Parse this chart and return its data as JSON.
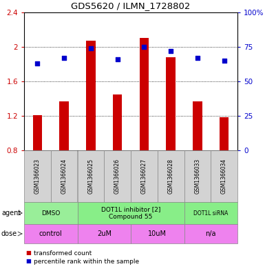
{
  "title": "GDS5620 / ILMN_1728802",
  "samples": [
    "GSM1366023",
    "GSM1366024",
    "GSM1366025",
    "GSM1366026",
    "GSM1366027",
    "GSM1366028",
    "GSM1366033",
    "GSM1366034"
  ],
  "transformed_counts": [
    1.21,
    1.37,
    2.07,
    1.45,
    2.1,
    1.88,
    1.37,
    1.18
  ],
  "percentile_ranks": [
    63,
    67,
    74,
    66,
    75,
    72,
    67,
    65
  ],
  "ylim_left": [
    0.8,
    2.4
  ],
  "ylim_right": [
    0,
    100
  ],
  "yticks_left": [
    0.8,
    1.2,
    1.6,
    2.0,
    2.4
  ],
  "yticks_right": [
    0,
    25,
    50,
    75,
    100
  ],
  "bar_color": "#cc0000",
  "bar_bottom": 0.8,
  "dot_color": "#0000cc",
  "bar_width": 0.35,
  "agent_groups": [
    {
      "label": "DMSO",
      "start": 0,
      "end": 2,
      "color": "#99ee99"
    },
    {
      "label": "DOT1L inhibitor [2]\nCompound 55",
      "start": 2,
      "end": 6,
      "color": "#88ee88"
    },
    {
      "label": "DOT1L siRNA",
      "start": 6,
      "end": 8,
      "color": "#88ee88"
    }
  ],
  "dose_groups": [
    {
      "label": "control",
      "start": 0,
      "end": 2,
      "color": "#ee82ee"
    },
    {
      "label": "2uM",
      "start": 2,
      "end": 4,
      "color": "#ee82ee"
    },
    {
      "label": "10uM",
      "start": 4,
      "end": 6,
      "color": "#ee82ee"
    },
    {
      "label": "n/a",
      "start": 6,
      "end": 8,
      "color": "#ee82ee"
    }
  ],
  "xlabel_color_left": "#cc0000",
  "xlabel_color_right": "#0000cc",
  "tick_label_bg": "#d3d3d3",
  "agent_font_sizes": [
    7,
    6.5,
    6
  ],
  "dose_font_size": 7,
  "sample_font_size": 5.5,
  "siRNA_font_size": 5.5
}
